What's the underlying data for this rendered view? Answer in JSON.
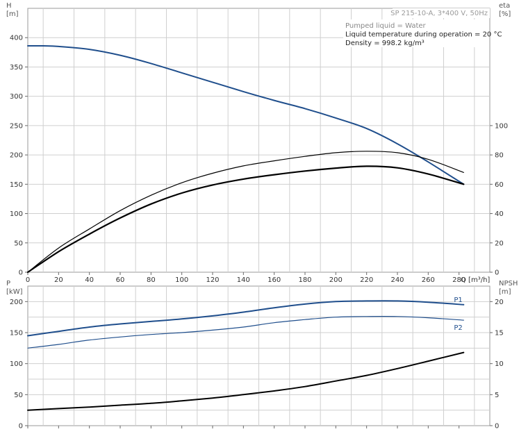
{
  "chart_data": [
    {
      "type": "line",
      "title": "SP 215-10-A, 3*400 V, 50Hz",
      "annotations": [
        "Pumped liquid = Water",
        "Liquid temperature during operation = 20 °C",
        "Density = 998.2 kg/m³"
      ],
      "xlabel": "Q [m³/h]",
      "ylabel_left": "H\n[m]",
      "ylabel_right": "eta\n[%]",
      "xlim": [
        0,
        300
      ],
      "xticks": [
        0,
        20,
        40,
        60,
        80,
        100,
        120,
        140,
        160,
        180,
        200,
        220,
        240,
        260,
        280
      ],
      "ylim_left": [
        0,
        450
      ],
      "yticks_left": [
        0,
        50,
        100,
        150,
        200,
        250,
        300,
        350,
        400
      ],
      "ylim_right": [
        0,
        180
      ],
      "yticks_right": [
        0,
        20,
        40,
        60,
        80,
        100
      ],
      "grid": true,
      "series": [
        {
          "axis": "left",
          "color": "#1f4e8c",
          "width": 2,
          "x": [
            0,
            10,
            20,
            40,
            60,
            80,
            100,
            120,
            140,
            160,
            180,
            200,
            220,
            240,
            260,
            283
          ],
          "y": [
            386,
            386,
            385,
            380,
            370,
            356,
            340,
            324,
            308,
            293,
            279,
            263,
            245,
            219,
            188,
            150
          ]
        },
        {
          "axis": "right",
          "color": "#000000",
          "width": 1.2,
          "x": [
            0,
            20,
            40,
            60,
            80,
            100,
            120,
            140,
            160,
            180,
            200,
            220,
            240,
            260,
            283
          ],
          "y": [
            0,
            16.5,
            29.5,
            42,
            52.5,
            61,
            67.5,
            72.5,
            76,
            79,
            81.5,
            82.5,
            81.5,
            77,
            68
          ]
        },
        {
          "axis": "right",
          "color": "#000000",
          "width": 2.2,
          "x": [
            0,
            20,
            40,
            60,
            80,
            100,
            120,
            140,
            160,
            180,
            200,
            220,
            240,
            260,
            283
          ],
          "y": [
            0,
            14,
            26,
            37,
            46.5,
            54,
            59.5,
            63.5,
            66.5,
            69,
            71,
            72.3,
            71.2,
            67,
            60
          ]
        }
      ]
    },
    {
      "type": "line",
      "xlim": [
        0,
        300
      ],
      "xticks": [
        0,
        20,
        40,
        60,
        80,
        100,
        120,
        140,
        160,
        180,
        200,
        220,
        240,
        260,
        280
      ],
      "ylabel_left": "P\n[kW]",
      "ylabel_right": "NPSH\n[m]",
      "ylim_left": [
        0,
        225
      ],
      "yticks_left": [
        0,
        50,
        100,
        150,
        200
      ],
      "ylim_right": [
        0,
        22.5
      ],
      "yticks_right": [
        0,
        5,
        10,
        15,
        20
      ],
      "grid": true,
      "series": [
        {
          "name": "P1",
          "axis": "left",
          "color": "#1f4e8c",
          "width": 2,
          "x": [
            0,
            20,
            40,
            60,
            80,
            100,
            120,
            140,
            160,
            180,
            200,
            220,
            240,
            260,
            283
          ],
          "y": [
            145,
            152,
            159,
            164,
            168,
            172,
            177,
            183,
            190,
            196,
            200,
            201,
            201,
            199,
            195
          ]
        },
        {
          "name": "P2",
          "axis": "left",
          "color": "#1f4e8c",
          "width": 1.2,
          "x": [
            0,
            20,
            40,
            60,
            80,
            100,
            120,
            140,
            160,
            180,
            200,
            220,
            240,
            260,
            283
          ],
          "y": [
            125,
            131,
            138,
            143,
            147,
            150,
            154,
            159,
            166,
            171,
            175,
            176,
            176,
            174,
            170
          ]
        },
        {
          "axis": "right",
          "color": "#000000",
          "width": 2,
          "x": [
            0,
            20,
            40,
            60,
            80,
            100,
            120,
            140,
            160,
            180,
            200,
            220,
            240,
            260,
            283
          ],
          "y": [
            2.5,
            2.75,
            3.0,
            3.3,
            3.6,
            4.0,
            4.45,
            5.0,
            5.6,
            6.3,
            7.2,
            8.1,
            9.2,
            10.4,
            11.8
          ]
        }
      ]
    }
  ]
}
